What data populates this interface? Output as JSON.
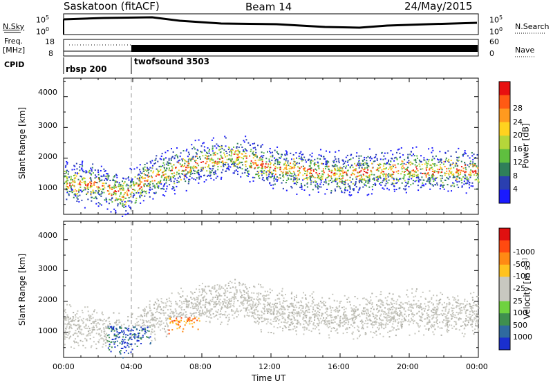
{
  "header": {
    "station": "Saskatoon (fitACF)",
    "beam": "Beam 14",
    "date": "24/May/2015"
  },
  "nsky_panel": {
    "left_label": "N.Sky",
    "left_ticks": [
      "10^5",
      "10^0"
    ],
    "right_label": "N.Search",
    "right_ticks": [
      "10^5",
      "10^0"
    ]
  },
  "freq_panel": {
    "left_label_line1": "Freq.",
    "left_label_line2": "[MHz]",
    "left_ticks": [
      "18",
      "8"
    ],
    "right_label": "Nave",
    "right_ticks": [
      "60",
      "0"
    ]
  },
  "cpid_panel": {
    "label": "CPID",
    "modes": [
      {
        "name": "rbsp 200",
        "start_hour": 0
      },
      {
        "name": "twofsound 3503",
        "start_hour": 3.75
      }
    ]
  },
  "chart_data": [
    {
      "type": "heatmap",
      "name": "power",
      "ylabel": "Slant Range [km]",
      "yticks": [
        1000,
        2000,
        3000,
        4000
      ],
      "ylim": [
        180,
        4600
      ],
      "xlim_hours": [
        0,
        24
      ],
      "colorbar_label": "Power [dB]",
      "colorbar_ticks": [
        "4",
        "8",
        "12",
        "16",
        "20",
        "24",
        "28"
      ],
      "colorbar_colors": [
        "#1a1aff",
        "#2a3fb0",
        "#2f7f5a",
        "#5fbf3f",
        "#b5d63a",
        "#ffd21f",
        "#ff9a1f",
        "#ff5a14",
        "#e81010"
      ],
      "scatter_band": [
        {
          "t": 0.0,
          "range": 1250
        },
        {
          "t": 2.0,
          "range": 1150
        },
        {
          "t": 3.5,
          "range": 850
        },
        {
          "t": 5.0,
          "range": 1400
        },
        {
          "t": 8.0,
          "range": 1900
        },
        {
          "t": 10.0,
          "range": 2100
        },
        {
          "t": 12.0,
          "range": 1700
        },
        {
          "t": 16.0,
          "range": 1500
        },
        {
          "t": 20.0,
          "range": 1650
        },
        {
          "t": 24.0,
          "range": 1600
        }
      ]
    },
    {
      "type": "heatmap",
      "name": "velocity",
      "ylabel": "Slant Range [km]",
      "yticks": [
        1000,
        2000,
        3000,
        4000
      ],
      "ylim": [
        180,
        4600
      ],
      "xlim_hours": [
        0,
        24
      ],
      "xlabel": "Time UT",
      "xticks": [
        "00:00",
        "04:00",
        "08:00",
        "12:00",
        "16:00",
        "20:00",
        "00:00"
      ],
      "colorbar_label": "Velocity [m s^-1]",
      "colorbar_ticks": [
        "1000",
        "500",
        "100",
        "25",
        "-25",
        "-100",
        "-500",
        "-1000"
      ],
      "colorbar_colors": [
        "#1a2fcf",
        "#2f6a9f",
        "#3f8f4f",
        "#6fd23f",
        "#c8c8c0",
        "#c8c8c0",
        "#ffc21f",
        "#ff8a14",
        "#ff4a10",
        "#e01010"
      ]
    }
  ]
}
